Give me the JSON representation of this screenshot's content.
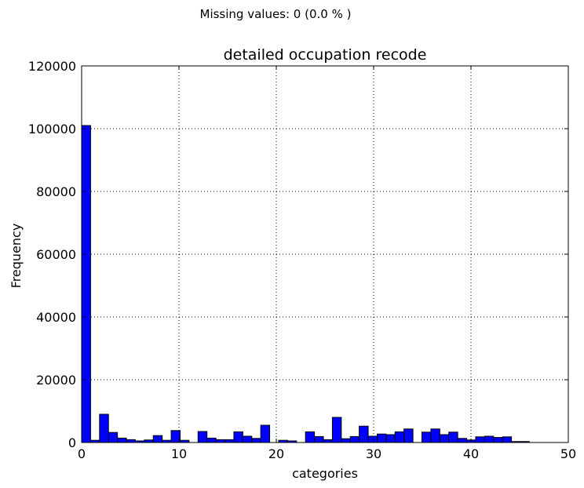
{
  "header_note": "Missing values: 0 (0.0 % )",
  "chart_data": {
    "type": "bar",
    "title": "detailed occupation recode",
    "xlabel": "categories",
    "ylabel": "Frequency",
    "xlim": [
      0,
      50
    ],
    "ylim": [
      0,
      120000
    ],
    "grid": true,
    "bar_color": "#0000ff",
    "edge_color": "#000000",
    "bin_width": 0.92,
    "x_ticks": [
      0,
      10,
      20,
      30,
      40,
      50
    ],
    "x_tick_labels": [
      "0",
      "10",
      "20",
      "30",
      "40",
      "50"
    ],
    "y_ticks": [
      0,
      20000,
      40000,
      60000,
      80000,
      100000,
      120000
    ],
    "y_tick_labels": [
      "0",
      "20000",
      "40000",
      "60000",
      "80000",
      "100000",
      "120000"
    ],
    "bin_starts": [
      0,
      0.92,
      1.84,
      2.76,
      3.68,
      4.6,
      5.52,
      6.44,
      7.36,
      8.28,
      9.2,
      10.12,
      11.04,
      11.96,
      12.88,
      13.8,
      14.72,
      15.64,
      16.56,
      17.48,
      18.4,
      19.32,
      20.24,
      21.16,
      22.08,
      23,
      23.92,
      24.84,
      25.76,
      26.68,
      27.6,
      28.52,
      29.44,
      30.36,
      31.28,
      32.2,
      33.12,
      34.04,
      34.96,
      35.88,
      36.8,
      37.72,
      38.64,
      39.56,
      40.48,
      41.4,
      42.32,
      43.24,
      44.16,
      45.08
    ],
    "values": [
      101000,
      700,
      9000,
      3200,
      1400,
      900,
      500,
      800,
      2200,
      700,
      3800,
      700,
      0,
      3500,
      1400,
      900,
      900,
      3400,
      2000,
      1300,
      5500,
      0,
      700,
      500,
      0,
      3400,
      1900,
      900,
      8000,
      1200,
      1900,
      5200,
      2000,
      2700,
      2500,
      3400,
      4300,
      0,
      3300,
      4300,
      2500,
      3300,
      1300,
      800,
      1800,
      2000,
      1600,
      1800,
      300,
      300
    ]
  }
}
